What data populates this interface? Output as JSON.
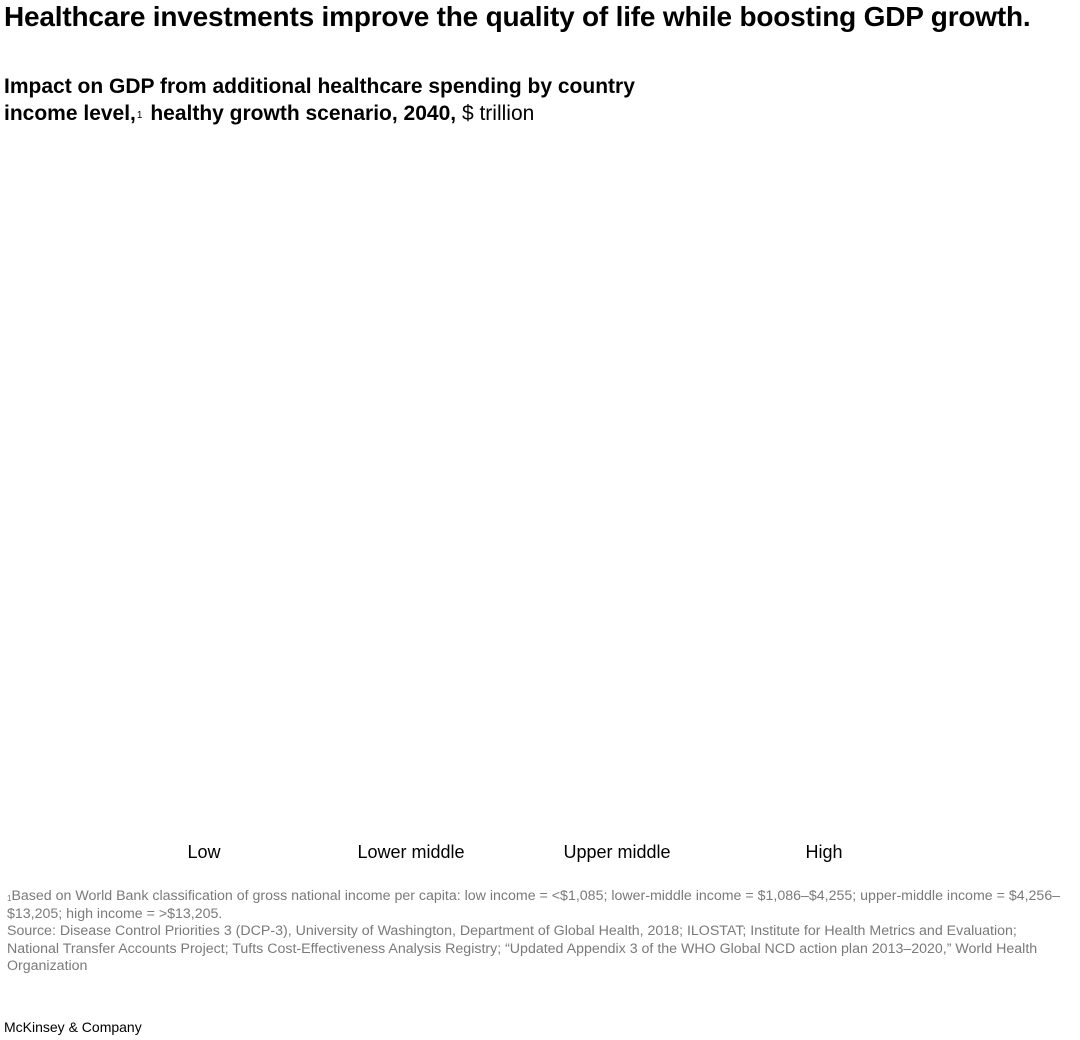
{
  "headline": "Healthcare investments improve the quality of life while boosting GDP growth.",
  "subtitle": {
    "line1": "Impact on GDP from additional healthcare spending by country",
    "line2_bold": "income level,",
    "footnote_marker": "1",
    "line2_rest": "healthy growth scenario, 2040,",
    "unit": "$ trillion"
  },
  "chart_data": {
    "type": "bar",
    "categories": [
      "Low",
      "Lower middle",
      "Upper middle",
      "High"
    ],
    "values": [
      null,
      null,
      null,
      null
    ],
    "title": "Impact on GDP from additional healthcare spending by country income level, healthy growth scenario, 2040",
    "xlabel": "",
    "ylabel": "$ trillion",
    "grid": false,
    "legend": "none"
  },
  "footnotes": {
    "marker": "1",
    "note": "Based on World Bank classification of gross national income per capita: low income = <$1,085; lower-middle income = $1,086–$4,255; upper-middle income = $4,256–$13,205; high income = >$13,205.",
    "source": "Source: Disease Control Priorities 3 (DCP-3), University of Washington, Department of Global Health, 2018; ILOSTAT; Institute for Health Metrics and Evaluation; National Transfer Accounts Project; Tufts Cost-Effectiveness Analysis Registry; “Updated Appendix 3 of the WHO Global NCD action plan 2013–2020,” World Health Organization"
  },
  "brand": "McKinsey & Company",
  "colors": {
    "text": "#000000",
    "muted": "#7a7a7a",
    "background": "#ffffff"
  }
}
